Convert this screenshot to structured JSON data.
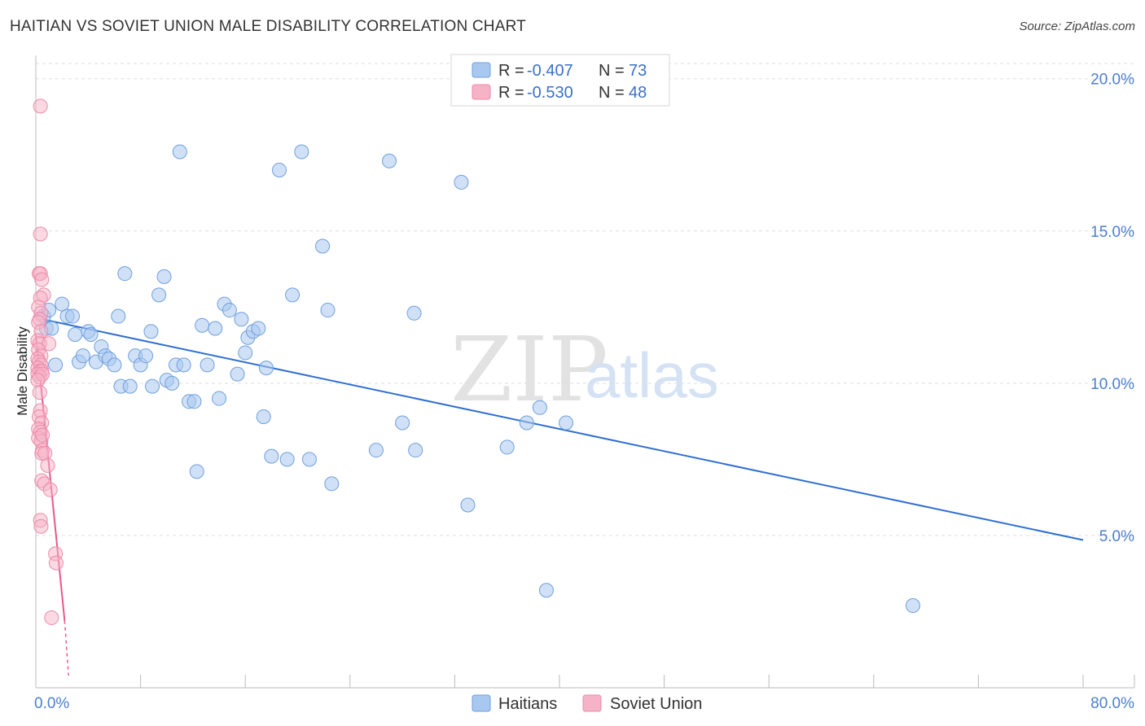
{
  "title": "HAITIAN VS SOVIET UNION MALE DISABILITY CORRELATION CHART",
  "source": "Source: ZipAtlas.com",
  "watermark": {
    "zip": "ZIP",
    "atlas": "atlas"
  },
  "colors": {
    "haitians_fill": "#a9c8f0",
    "haitians_stroke": "#6f9fdc",
    "haitians_line": "#2f6fd0",
    "soviet_fill": "#f6b3c8",
    "soviet_stroke": "#ec8aaa",
    "soviet_line": "#e8578a",
    "axis_label": "#4a7fd0",
    "grid": "#dddddd"
  },
  "stats_legend": [
    {
      "r_label": "R =",
      "r_value": "-0.407",
      "n_label": "N =",
      "n_value": "73"
    },
    {
      "r_label": "R =",
      "r_value": "-0.530",
      "n_label": "N =",
      "n_value": "48"
    }
  ],
  "chart_data": {
    "type": "scatter",
    "title": "HAITIAN VS SOVIET UNION MALE DISABILITY CORRELATION CHART",
    "xlabel": "",
    "ylabel": "Male Disability",
    "xlim": [
      0,
      80
    ],
    "ylim": [
      0,
      20.5
    ],
    "x_tick_labels": [
      "0.0%",
      "80.0%"
    ],
    "y_ticks": [
      5,
      10,
      15,
      20
    ],
    "y_tick_labels": [
      "5.0%",
      "10.0%",
      "15.0%",
      "20.0%"
    ],
    "legend": [
      "Haitians",
      "Soviet Union"
    ],
    "series": [
      {
        "name": "Haitians",
        "trend": {
          "x0": 0.5,
          "y0": 12.1,
          "x1": 80,
          "y1": 4.85
        },
        "points": [
          [
            0.6,
            12.2
          ],
          [
            0.8,
            11.8
          ],
          [
            1.0,
            12.4
          ],
          [
            1.2,
            11.8
          ],
          [
            1.5,
            10.6
          ],
          [
            2.0,
            12.6
          ],
          [
            2.4,
            12.2
          ],
          [
            2.8,
            12.2
          ],
          [
            3.0,
            11.6
          ],
          [
            3.3,
            10.7
          ],
          [
            3.6,
            10.9
          ],
          [
            4.0,
            11.7
          ],
          [
            4.6,
            10.7
          ],
          [
            4.2,
            11.6
          ],
          [
            5.0,
            11.2
          ],
          [
            5.3,
            10.9
          ],
          [
            5.6,
            10.8
          ],
          [
            6.0,
            10.6
          ],
          [
            6.3,
            12.2
          ],
          [
            6.5,
            9.9
          ],
          [
            6.8,
            13.6
          ],
          [
            7.2,
            9.9
          ],
          [
            7.6,
            10.9
          ],
          [
            8.0,
            10.6
          ],
          [
            8.4,
            10.9
          ],
          [
            8.8,
            11.7
          ],
          [
            8.9,
            9.9
          ],
          [
            9.4,
            12.9
          ],
          [
            9.8,
            13.5
          ],
          [
            10.0,
            10.1
          ],
          [
            10.4,
            10.0
          ],
          [
            10.7,
            10.6
          ],
          [
            11.0,
            17.6
          ],
          [
            11.3,
            10.6
          ],
          [
            11.7,
            9.4
          ],
          [
            12.1,
            9.4
          ],
          [
            12.3,
            7.1
          ],
          [
            12.7,
            11.9
          ],
          [
            13.1,
            10.6
          ],
          [
            13.7,
            11.8
          ],
          [
            14.0,
            9.5
          ],
          [
            14.4,
            12.6
          ],
          [
            14.8,
            12.4
          ],
          [
            15.4,
            10.3
          ],
          [
            15.7,
            12.1
          ],
          [
            16.0,
            11.0
          ],
          [
            16.2,
            11.5
          ],
          [
            16.6,
            11.7
          ],
          [
            17.0,
            11.8
          ],
          [
            17.4,
            8.9
          ],
          [
            17.6,
            10.5
          ],
          [
            18.0,
            7.6
          ],
          [
            18.6,
            17.0
          ],
          [
            19.2,
            7.5
          ],
          [
            19.6,
            12.9
          ],
          [
            20.3,
            17.6
          ],
          [
            20.9,
            7.5
          ],
          [
            21.9,
            14.5
          ],
          [
            22.3,
            12.4
          ],
          [
            22.6,
            6.7
          ],
          [
            26.0,
            7.8
          ],
          [
            27.0,
            17.3
          ],
          [
            28.0,
            8.7
          ],
          [
            28.9,
            12.3
          ],
          [
            29.0,
            7.8
          ],
          [
            32.5,
            16.6
          ],
          [
            33.0,
            6.0
          ],
          [
            36.0,
            7.9
          ],
          [
            37.5,
            8.7
          ],
          [
            38.5,
            9.2
          ],
          [
            39.0,
            3.2
          ],
          [
            40.5,
            8.7
          ],
          [
            67.0,
            2.7
          ]
        ]
      },
      {
        "name": "Soviet Union",
        "trend": {
          "x0": 0.0,
          "y0": 11.6,
          "x1": 2.2,
          "y1": 2.2,
          "dashed_to": {
            "x": 2.5,
            "y": 0.4
          }
        },
        "points": [
          [
            0.35,
            19.1
          ],
          [
            0.35,
            14.9
          ],
          [
            0.25,
            13.6
          ],
          [
            0.35,
            13.6
          ],
          [
            0.45,
            13.4
          ],
          [
            0.6,
            12.9
          ],
          [
            0.35,
            12.8
          ],
          [
            0.2,
            12.5
          ],
          [
            0.4,
            12.3
          ],
          [
            0.3,
            12.1
          ],
          [
            0.2,
            12.0
          ],
          [
            0.4,
            11.7
          ],
          [
            0.15,
            11.4
          ],
          [
            0.3,
            11.3
          ],
          [
            1.0,
            11.3
          ],
          [
            0.2,
            11.1
          ],
          [
            0.4,
            10.9
          ],
          [
            0.15,
            10.8
          ],
          [
            0.25,
            10.7
          ],
          [
            0.4,
            10.6
          ],
          [
            0.15,
            10.5
          ],
          [
            0.3,
            10.4
          ],
          [
            0.45,
            10.4
          ],
          [
            0.15,
            10.3
          ],
          [
            0.3,
            10.2
          ],
          [
            0.5,
            10.3
          ],
          [
            0.15,
            10.1
          ],
          [
            0.35,
            9.1
          ],
          [
            0.25,
            8.9
          ],
          [
            0.45,
            8.7
          ],
          [
            0.2,
            8.5
          ],
          [
            0.35,
            8.4
          ],
          [
            0.2,
            8.2
          ],
          [
            0.4,
            8.1
          ],
          [
            0.5,
            7.8
          ],
          [
            0.45,
            7.7
          ],
          [
            0.7,
            7.7
          ],
          [
            0.9,
            7.3
          ],
          [
            0.45,
            6.8
          ],
          [
            0.65,
            6.7
          ],
          [
            1.1,
            6.5
          ],
          [
            0.35,
            5.5
          ],
          [
            0.4,
            5.3
          ],
          [
            1.5,
            4.4
          ],
          [
            1.55,
            4.1
          ],
          [
            1.2,
            2.3
          ],
          [
            0.5,
            8.3
          ],
          [
            0.3,
            9.7
          ]
        ]
      }
    ]
  }
}
